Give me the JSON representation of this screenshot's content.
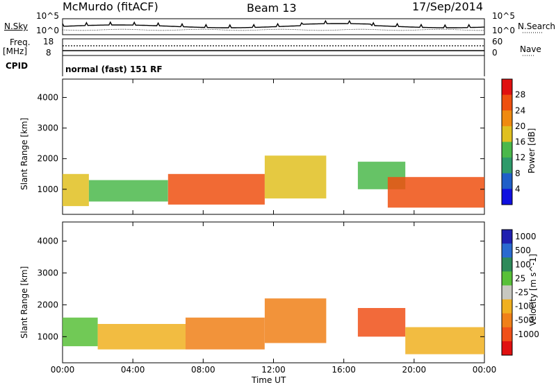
{
  "header": {
    "station": "McMurdo (fitACF)",
    "beam": "Beam 13",
    "date": "17/Sep/2014"
  },
  "top_panel": {
    "left_label_1": "N.Sky",
    "left_label_2": "Freq.",
    "left_label_3": "[MHz]",
    "left_label_4": "CPID",
    "right_label_1": "N.Search",
    "right_label_2": "Nave",
    "sky_ticks": [
      "10^5",
      "10^0"
    ],
    "freq_ticks": [
      "18",
      "8"
    ],
    "search_ticks": [
      "10^5",
      "10^0"
    ],
    "nave_ticks": [
      "60",
      "0"
    ],
    "cpid_text": "normal (fast) 151 RF"
  },
  "x_axis": {
    "label": "Time UT",
    "ticks": [
      "00:00",
      "04:00",
      "08:00",
      "12:00",
      "16:00",
      "20:00",
      "00:00"
    ]
  },
  "colors": {
    "power_scale": [
      "#1010e0",
      "#1f5fc8",
      "#2e9a6a",
      "#4bb84b",
      "#e0c020",
      "#f08a10",
      "#ee5010",
      "#e01010"
    ],
    "velocity_scale": [
      "#2020b0",
      "#2a6ad0",
      "#2e8a5a",
      "#58c038",
      "#c8c8c0",
      "#f0b020",
      "#f08018",
      "#f05018",
      "#e01010"
    ]
  },
  "chart_data": [
    {
      "type": "heatmap",
      "title": "",
      "xlabel": "Time UT",
      "ylabel": "Slant Range [km]",
      "xlim": [
        "00:00",
        "24:00"
      ],
      "ylim": [
        180,
        4600
      ],
      "yticks": [
        1000,
        2000,
        3000,
        4000
      ],
      "colorbar_label": "Power [dB]",
      "colorbar_ticks": [
        "4",
        "8",
        "12",
        "16",
        "20",
        "24",
        "28"
      ],
      "regions": [
        {
          "t0": 0.0,
          "t1": 1.5,
          "r0": 450,
          "r1": 1500,
          "value": 16
        },
        {
          "t0": 1.5,
          "t1": 6.0,
          "r0": 600,
          "r1": 1300,
          "value": 12
        },
        {
          "t0": 6.0,
          "t1": 11.5,
          "r0": 500,
          "r1": 1500,
          "value": 26
        },
        {
          "t0": 11.5,
          "t1": 15.0,
          "r0": 700,
          "r1": 2100,
          "value": 18
        },
        {
          "t0": 16.8,
          "t1": 19.5,
          "r0": 1000,
          "r1": 1900,
          "value": 12
        },
        {
          "t0": 18.5,
          "t1": 24.0,
          "r0": 400,
          "r1": 1400,
          "value": 26
        }
      ]
    },
    {
      "type": "heatmap",
      "title": "",
      "xlabel": "Time UT",
      "ylabel": "Slant Range [km]",
      "xlim": [
        "00:00",
        "24:00"
      ],
      "ylim": [
        180,
        4600
      ],
      "yticks": [
        1000,
        2000,
        3000,
        4000
      ],
      "colorbar_label": "Velocity [m s^-1]",
      "colorbar_ticks": [
        "1000",
        "500",
        "100",
        "25",
        "-25",
        "-100",
        "-500",
        "-1000"
      ],
      "regions": [
        {
          "t0": 0.0,
          "t1": 2.0,
          "r0": 700,
          "r1": 1600,
          "value": 50
        },
        {
          "t0": 2.0,
          "t1": 7.0,
          "r0": 600,
          "r1": 1400,
          "value": -100
        },
        {
          "t0": 7.0,
          "t1": 11.5,
          "r0": 600,
          "r1": 1600,
          "value": -200
        },
        {
          "t0": 11.5,
          "t1": 15.0,
          "r0": 800,
          "r1": 2200,
          "value": -300
        },
        {
          "t0": 16.8,
          "t1": 19.5,
          "r0": 1000,
          "r1": 1900,
          "value": -600
        },
        {
          "t0": 19.5,
          "t1": 24.0,
          "r0": 450,
          "r1": 1300,
          "value": -100
        }
      ]
    }
  ]
}
